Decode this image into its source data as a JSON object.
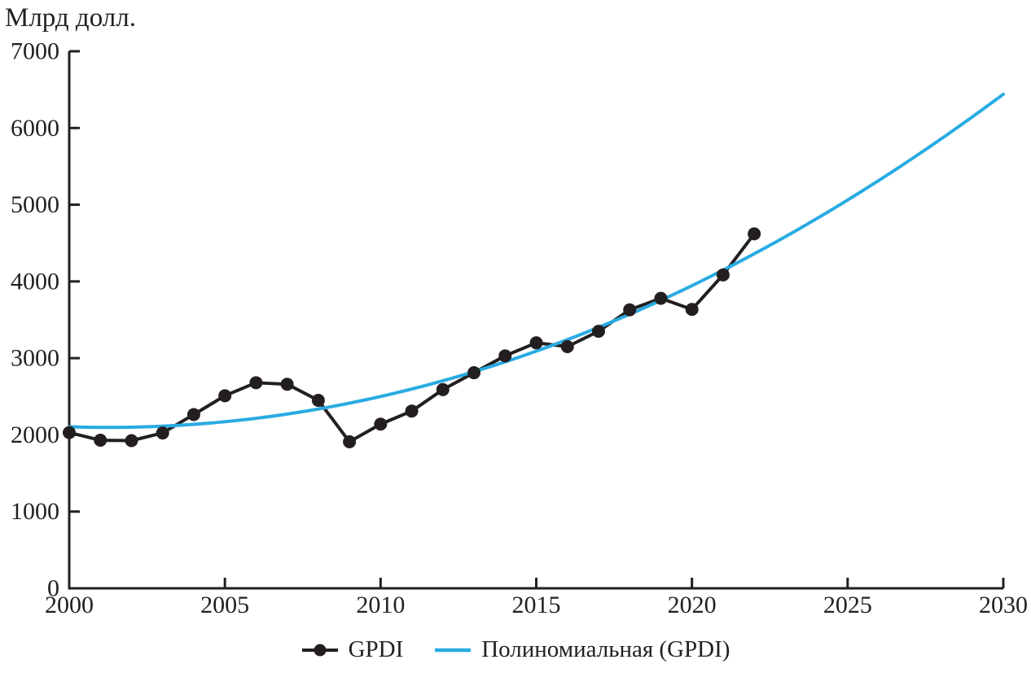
{
  "chart_data": {
    "type": "line",
    "title": "",
    "ylabel": "Млрд долл.",
    "xlabel": "",
    "grid": false,
    "axis_color": "#231F20",
    "xlim": [
      2000,
      2030
    ],
    "ylim": [
      0,
      7000
    ],
    "x_ticks": [
      2000,
      2005,
      2010,
      2015,
      2020,
      2025,
      2030
    ],
    "y_ticks": [
      0,
      1000,
      2000,
      3000,
      4000,
      5000,
      6000,
      7000
    ],
    "legend_position": "bottom-center",
    "x": [
      2000,
      2001,
      2002,
      2003,
      2004,
      2005,
      2006,
      2007,
      2008,
      2009,
      2010,
      2011,
      2012,
      2013,
      2014,
      2015,
      2016,
      2017,
      2018,
      2019,
      2020,
      2021,
      2022
    ],
    "series": [
      {
        "name": "GPDI",
        "kind": "line_markers",
        "color": "#231F20",
        "marker": "circle",
        "values": [
          2030,
          1930,
          1925,
          2025,
          2265,
          2510,
          2680,
          2660,
          2450,
          1910,
          2140,
          2310,
          2590,
          2810,
          3030,
          3200,
          3150,
          3350,
          3630,
          3780,
          3635,
          4085,
          4620
        ]
      },
      {
        "name": "Полиномиальная (GPDI)",
        "kind": "polynomial_trend",
        "color": "#29ABE2",
        "degree": 2,
        "coefficients": [
          2105,
          -13,
          5.25
        ],
        "coefficients_note": "value = c0 + c1*(year-2000) + c2*(year-2000)^2",
        "x_range": [
          2000,
          2030
        ],
        "value_at_2030": 6440
      }
    ]
  },
  "legend": {
    "gpdi_label": "GPDI",
    "trend_label": "Полиномиальная (GPDI)"
  }
}
